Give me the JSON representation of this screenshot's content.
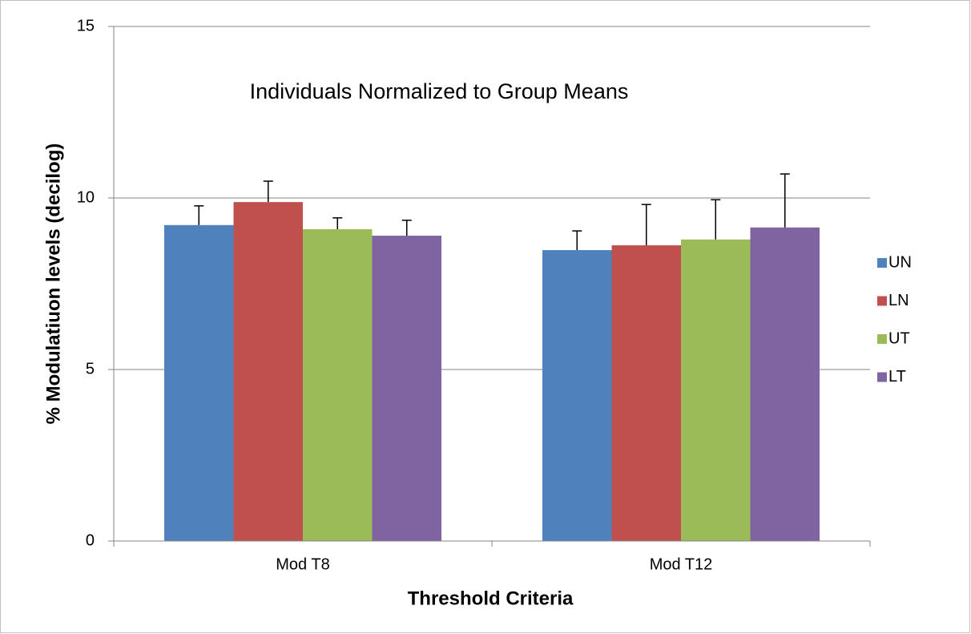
{
  "chart_data": {
    "type": "bar",
    "title": "Individuals Normalized to Group Means",
    "x_label": "Threshold Criteria",
    "y_label": "% Modulatiuon levels (decilog)",
    "categories": [
      "Mod T8",
      "Mod T12"
    ],
    "series": [
      {
        "name": "UN",
        "color": "#4f81bd",
        "values": [
          9.21,
          8.48
        ],
        "errors": [
          0.56,
          0.56
        ]
      },
      {
        "name": "LN",
        "color": "#c0504d",
        "values": [
          9.88,
          8.62
        ],
        "errors": [
          0.61,
          1.19
        ]
      },
      {
        "name": "UT",
        "color": "#9bbb59",
        "values": [
          9.09,
          8.79
        ],
        "errors": [
          0.33,
          1.16
        ]
      },
      {
        "name": "LT",
        "color": "#8064a2",
        "values": [
          8.9,
          9.14
        ],
        "errors": [
          0.45,
          1.56
        ]
      }
    ],
    "ylim": [
      0,
      15
    ],
    "yticks": [
      0,
      5,
      10,
      15
    ],
    "grid": true,
    "legend": "right"
  }
}
